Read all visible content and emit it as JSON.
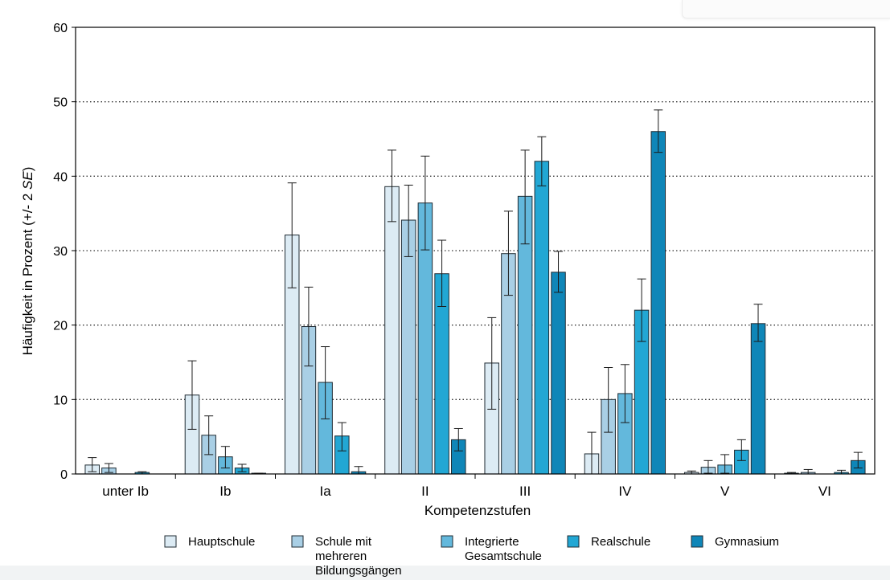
{
  "chart_data": {
    "type": "bar",
    "title": "",
    "xlabel": "Kompetenzstufen",
    "ylabel_prefix": "Häufigkeit in Prozent (+/- 2 ",
    "ylabel_italic": "SE",
    "ylabel_suffix": ")",
    "ylim": [
      0,
      60
    ],
    "yticks": [
      "0",
      "10",
      "20",
      "30",
      "40",
      "50",
      "60"
    ],
    "grid": "horizontal dotted",
    "legend_position": "bottom",
    "categories": [
      "unter Ib",
      "Ib",
      "Ia",
      "II",
      "III",
      "IV",
      "V",
      "VI"
    ],
    "series": [
      {
        "name": "Hauptschule",
        "color": "#dcebf4",
        "values": [
          1.2,
          10.6,
          32.1,
          38.6,
          14.9,
          2.7,
          0.2,
          0.1
        ],
        "err_low": [
          0.3,
          6.0,
          25.0,
          33.9,
          8.7,
          0.0,
          0.0,
          0.0
        ],
        "err_high": [
          2.2,
          15.2,
          39.1,
          43.5,
          21.0,
          5.6,
          0.4,
          0.2
        ]
      },
      {
        "name": "Schule mit mehreren Bildungsgängen",
        "color": "#a9cfe5",
        "values": [
          0.8,
          5.2,
          19.8,
          34.1,
          29.6,
          10.0,
          0.9,
          0.2
        ],
        "err_low": [
          0.2,
          2.6,
          14.5,
          29.2,
          24.0,
          5.6,
          0.1,
          0.0
        ],
        "err_high": [
          1.4,
          7.8,
          25.1,
          38.8,
          35.3,
          14.3,
          1.8,
          0.6
        ]
      },
      {
        "name": "Integrierte Gesamtschule",
        "color": "#63b8dc",
        "values": [
          0.0,
          2.3,
          12.3,
          36.4,
          37.3,
          10.8,
          1.2,
          0.0
        ],
        "err_low": [
          0.0,
          0.8,
          7.4,
          30.1,
          30.9,
          6.9,
          0.1,
          0.0
        ],
        "err_high": [
          0.0,
          3.7,
          17.1,
          42.7,
          43.5,
          14.7,
          2.6,
          0.0
        ]
      },
      {
        "name": "Realschule",
        "color": "#22a7d4",
        "values": [
          0.2,
          0.8,
          5.1,
          26.9,
          42.0,
          22.0,
          3.2,
          0.2
        ],
        "err_low": [
          0.0,
          0.3,
          3.1,
          22.5,
          38.7,
          17.8,
          1.8,
          0.0
        ],
        "err_high": [
          0.3,
          1.3,
          6.9,
          31.4,
          45.3,
          26.2,
          4.6,
          0.5
        ]
      },
      {
        "name": "Gymnasium",
        "color": "#0f86b8",
        "values": [
          0.0,
          0.1,
          0.3,
          4.6,
          27.1,
          46.0,
          20.2,
          1.8
        ],
        "err_low": [
          0.0,
          0.0,
          0.0,
          3.1,
          24.4,
          43.2,
          17.8,
          0.8
        ],
        "err_high": [
          0.0,
          0.1,
          1.0,
          6.1,
          29.9,
          48.9,
          22.8,
          2.9
        ]
      }
    ],
    "legend": [
      {
        "lines": [
          "Hauptschule"
        ]
      },
      {
        "lines": [
          "Schule mit",
          "mehreren",
          "Bildungsgängen"
        ]
      },
      {
        "lines": [
          "Integrierte",
          "Gesamtschule"
        ]
      },
      {
        "lines": [
          "Realschule"
        ]
      },
      {
        "lines": [
          "Gymnasium"
        ]
      }
    ]
  }
}
